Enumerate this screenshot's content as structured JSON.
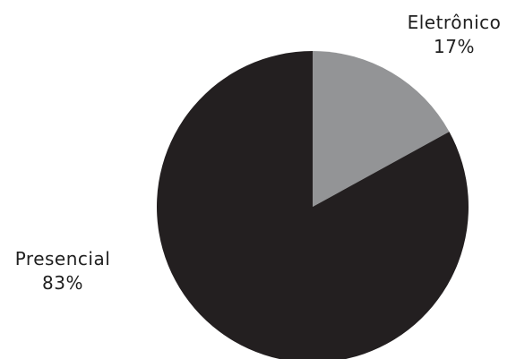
{
  "chart_data": {
    "type": "pie",
    "title": "",
    "slices": [
      {
        "label": "Eletrônico",
        "value": 17,
        "value_label": "17%",
        "color": "#939496"
      },
      {
        "label": "Presencial",
        "value": 83,
        "value_label": "83%",
        "color": "#231f20"
      }
    ],
    "start": "12 o'clock",
    "direction": "clockwise",
    "legend": "none"
  }
}
